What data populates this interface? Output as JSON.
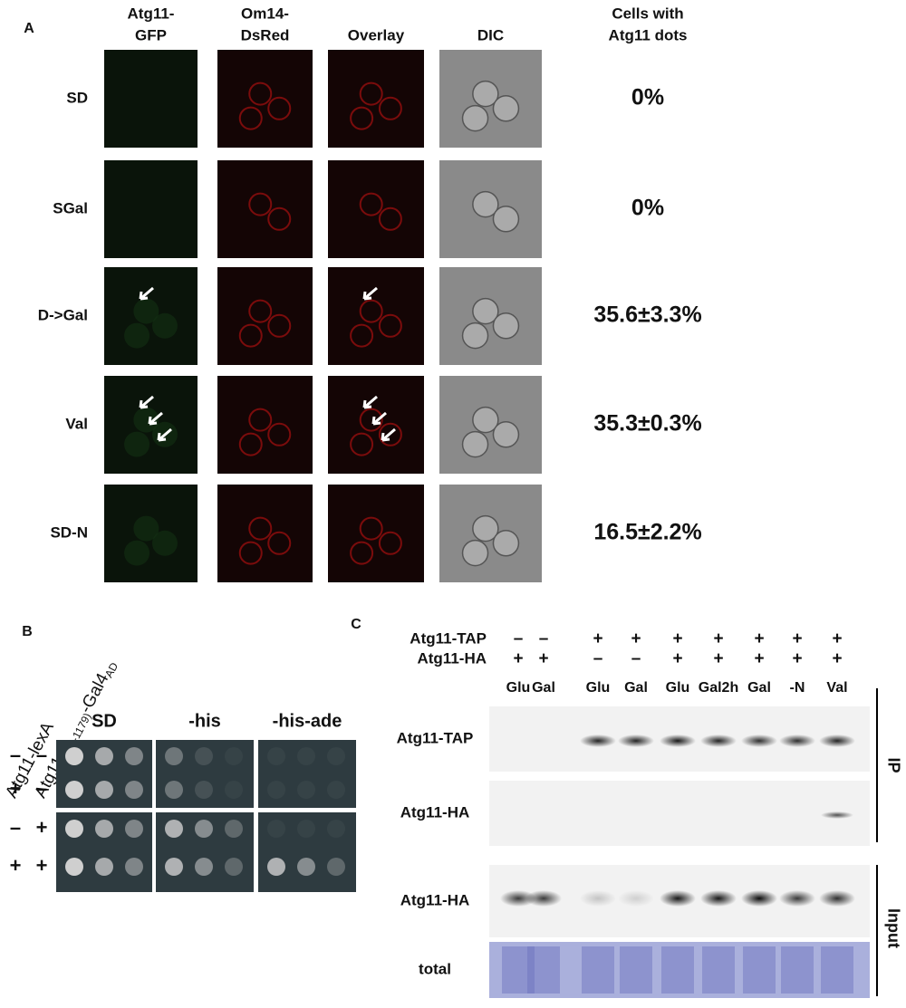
{
  "panel_a": {
    "label": "A",
    "headers": [
      [
        "Atg11-",
        "GFP"
      ],
      [
        "Om14-",
        "DsRed"
      ],
      [
        "Overlay"
      ],
      [
        "DIC"
      ]
    ],
    "result_header": [
      "Cells with",
      "Atg11 dots"
    ],
    "rows": [
      {
        "condition": "SD",
        "result": "0%"
      },
      {
        "condition": "SGal",
        "result": "0%"
      },
      {
        "condition": "D->Gal",
        "result": "35.6±3.3%"
      },
      {
        "condition": "Val",
        "result": "35.3±0.3%"
      },
      {
        "condition": "SD-N",
        "result": "16.5±2.2%"
      }
    ]
  },
  "panel_b": {
    "label": "B",
    "row_labels": [
      "Atg11-lexA",
      {
        "main": "Atg11",
        "sub": "(969-1179)",
        "tail": "-Gal4",
        "sub2": "AD"
      }
    ],
    "media": [
      "SD",
      "-his",
      "-his-ade"
    ],
    "rows": [
      [
        "–",
        "–"
      ],
      [
        "+",
        "–"
      ],
      [
        "–",
        "+"
      ],
      [
        "+",
        "+"
      ]
    ]
  },
  "panel_c": {
    "label": "C",
    "constructs": [
      {
        "name": "Atg11-TAP",
        "signs": [
          "–",
          "–",
          "+",
          "+",
          "+",
          "+",
          "+",
          "+",
          "+"
        ]
      },
      {
        "name": "Atg11-HA",
        "signs": [
          "+",
          "+",
          "–",
          "–",
          "+",
          "+",
          "+",
          "+",
          "+"
        ]
      }
    ],
    "lanes": [
      "Glu",
      "Gal",
      "Glu",
      "Gal",
      "Glu",
      "Gal2h",
      "Gal",
      "-N",
      "Val"
    ],
    "blots": [
      "Atg11-TAP",
      "Atg11-HA",
      "Atg11-HA",
      "total"
    ],
    "groups": [
      "IP",
      "Input"
    ]
  }
}
